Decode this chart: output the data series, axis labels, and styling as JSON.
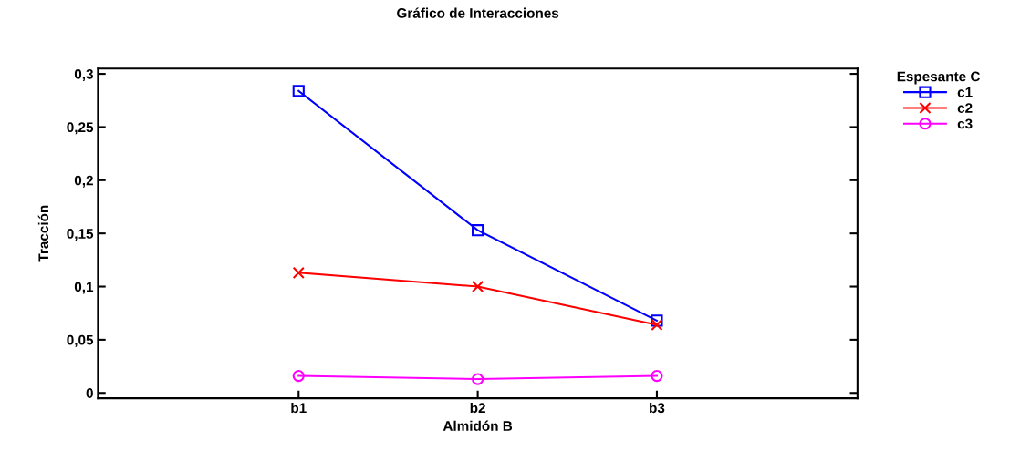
{
  "chart_data": {
    "type": "line",
    "title": "Gráfico de Interacciones",
    "xlabel": "Almidón B",
    "ylabel": "Tracción",
    "legend_title": "Espesante C",
    "categories": [
      "b1",
      "b2",
      "b3"
    ],
    "series": [
      {
        "name": "c1",
        "color": "#0000ff",
        "marker": "square",
        "values": [
          0.284,
          0.153,
          0.068
        ]
      },
      {
        "name": "c2",
        "color": "#ff0000",
        "marker": "cross",
        "values": [
          0.113,
          0.1,
          0.064
        ]
      },
      {
        "name": "c3",
        "color": "#ff00ff",
        "marker": "circle",
        "values": [
          0.016,
          0.013,
          0.016
        ]
      }
    ],
    "ylim": [
      -0.005,
      0.305
    ],
    "yticks": [
      {
        "value": 0,
        "label": "0"
      },
      {
        "value": 0.05,
        "label": "0,05"
      },
      {
        "value": 0.1,
        "label": "0,1"
      },
      {
        "value": 0.15,
        "label": "0,15"
      },
      {
        "value": 0.2,
        "label": "0,2"
      },
      {
        "value": 0.25,
        "label": "0,25"
      },
      {
        "value": 0.3,
        "label": "0,3"
      }
    ],
    "legend": "top right",
    "grid": false,
    "line_style": "solid"
  }
}
